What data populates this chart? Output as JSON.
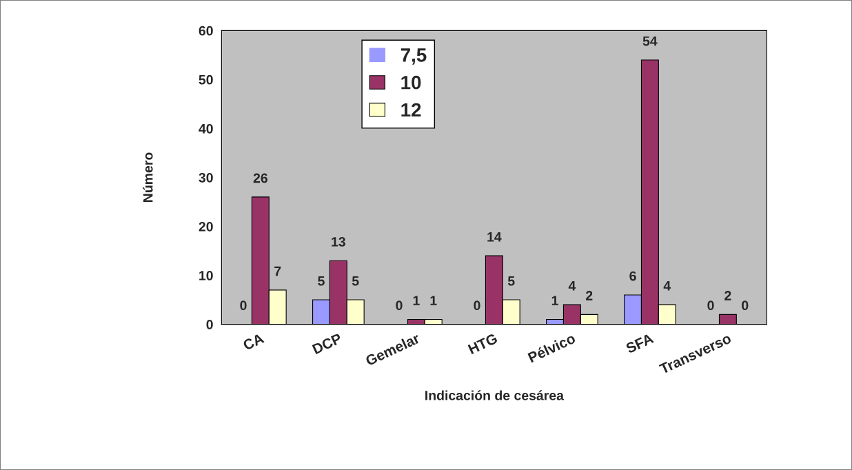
{
  "chart_data": {
    "type": "bar",
    "xlabel": "Indicación de cesárea",
    "ylabel": "Número",
    "categories": [
      "CA",
      "DCP",
      "Gemelar",
      "HTG",
      "Pélvico",
      "SFA",
      "Transverso"
    ],
    "series": [
      {
        "name": "7,5",
        "color": "#9999ff",
        "values": [
          0,
          5,
          0,
          0,
          1,
          6,
          0
        ]
      },
      {
        "name": "10",
        "color": "#993366",
        "values": [
          26,
          13,
          1,
          14,
          4,
          54,
          2
        ]
      },
      {
        "name": "12",
        "color": "#ffffcc",
        "values": [
          7,
          5,
          1,
          5,
          2,
          4,
          0
        ]
      }
    ],
    "ylim": [
      0,
      60
    ],
    "yticks": [
      0,
      10,
      20,
      30,
      40,
      50,
      60
    ],
    "grid": false,
    "legend": "top",
    "data_labels": true
  }
}
